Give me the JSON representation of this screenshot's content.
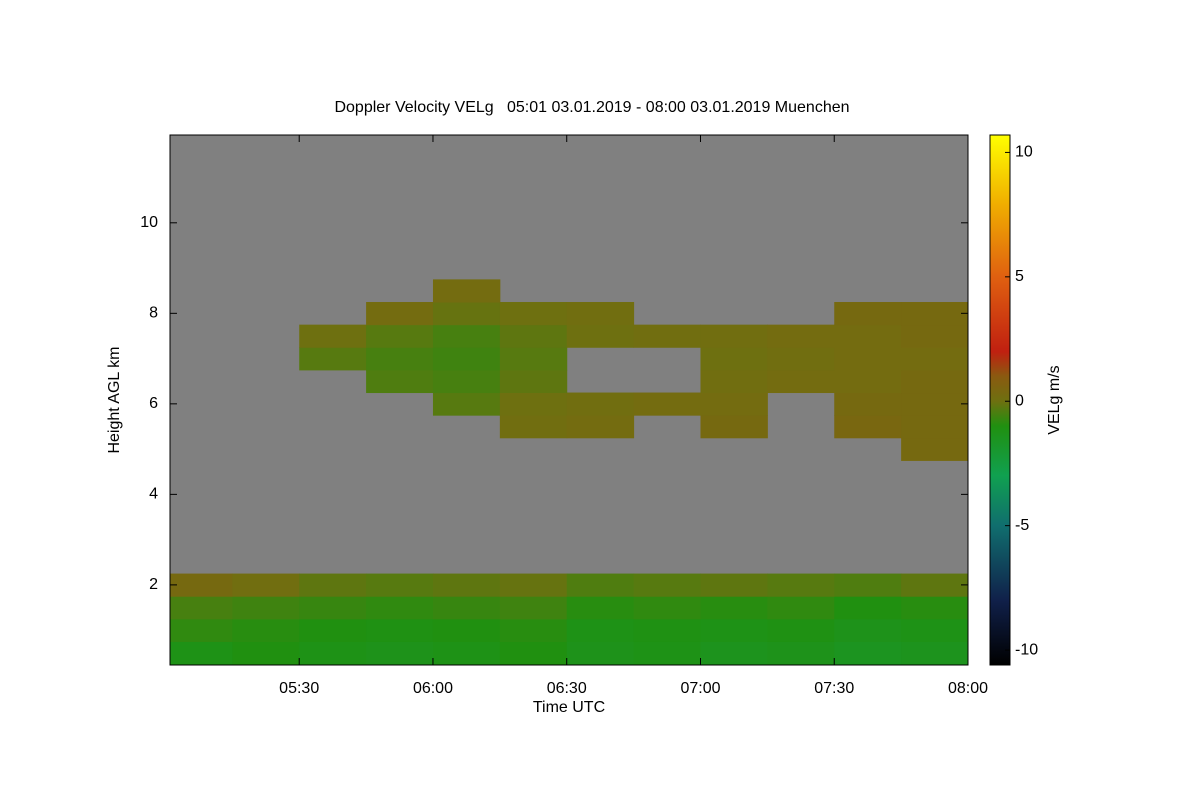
{
  "chart_data": {
    "type": "heatmap",
    "title": "Doppler Velocity VELg   05:01 03.01.2019 - 08:00 03.01.2019 Muenchen",
    "x_label": "Time UTC",
    "y_label": "Height AGL km",
    "colorbar_label": "VELg m/s",
    "xlim": [
      5.017,
      8.0
    ],
    "ylim": [
      0.23,
      11.94
    ],
    "xticks": [
      {
        "value": 5.5,
        "label": "05:30"
      },
      {
        "value": 6,
        "label": "06:00"
      },
      {
        "value": 6.5,
        "label": "06:30"
      },
      {
        "value": 7,
        "label": "07:00"
      },
      {
        "value": 7.5,
        "label": "07:30"
      },
      {
        "value": 8,
        "label": "08:00"
      }
    ],
    "yticks": [
      2,
      4,
      6,
      8,
      10
    ],
    "clim": [
      -10.6,
      10.7
    ],
    "cticks": [
      -10,
      -5,
      0,
      5,
      10
    ],
    "background_color": "#808080",
    "colormap": [
      [
        -10.6,
        "#000000"
      ],
      [
        -8,
        "#10204a"
      ],
      [
        -5,
        "#106e6e"
      ],
      [
        -3,
        "#10a050"
      ],
      [
        -1,
        "#209010"
      ],
      [
        0,
        "#6e7010"
      ],
      [
        1,
        "#8a5a10"
      ],
      [
        2,
        "#c02010"
      ],
      [
        5,
        "#e06010"
      ],
      [
        8,
        "#f0b000"
      ],
      [
        10.7,
        "#ffff00"
      ]
    ],
    "x": [
      5.125,
      5.375,
      5.625,
      5.875,
      6.125,
      6.375,
      6.625,
      6.875,
      7.125,
      7.375,
      7.625,
      7.875
    ],
    "y": [
      0.5,
      1.0,
      1.5,
      2.0,
      2.5,
      3.0,
      3.5,
      4.0,
      4.5,
      5.0,
      5.5,
      6.0,
      6.5,
      7.0,
      7.5,
      8.0,
      8.5
    ],
    "z": [
      [
        -1.2,
        -1.0,
        -1.2,
        -1.3,
        -1.2,
        -1.0,
        -1.3,
        -1.2,
        -1.4,
        -1.3,
        -1.5,
        -1.4
      ],
      [
        -0.8,
        -0.9,
        -1.0,
        -1.1,
        -1.0,
        -0.9,
        -1.2,
        -1.1,
        -1.2,
        -1.1,
        -1.3,
        -1.2
      ],
      [
        -0.5,
        -0.6,
        -0.7,
        -0.8,
        -0.7,
        -0.6,
        -0.9,
        -0.8,
        -0.9,
        -0.8,
        -1.0,
        -0.9
      ],
      [
        0.3,
        0.1,
        -0.2,
        -0.3,
        -0.2,
        -0.1,
        -0.4,
        -0.3,
        -0.2,
        -0.3,
        -0.4,
        -0.2
      ],
      [
        null,
        null,
        null,
        null,
        null,
        null,
        null,
        null,
        null,
        null,
        null,
        null
      ],
      [
        null,
        null,
        null,
        null,
        null,
        null,
        null,
        null,
        null,
        null,
        null,
        null
      ],
      [
        null,
        null,
        null,
        null,
        null,
        null,
        null,
        null,
        null,
        null,
        null,
        null
      ],
      [
        null,
        null,
        null,
        null,
        null,
        null,
        null,
        null,
        null,
        null,
        null,
        null
      ],
      [
        null,
        null,
        null,
        null,
        null,
        null,
        null,
        null,
        null,
        null,
        null,
        null
      ],
      [
        null,
        null,
        null,
        null,
        null,
        null,
        null,
        null,
        null,
        null,
        null,
        0.3
      ],
      [
        null,
        null,
        null,
        null,
        null,
        0.1,
        0.2,
        null,
        0.3,
        null,
        0.4,
        0.3
      ],
      [
        null,
        null,
        null,
        null,
        -0.3,
        0,
        0.1,
        0.2,
        0.2,
        null,
        0.3,
        0.3
      ],
      [
        null,
        null,
        null,
        -0.4,
        -0.5,
        -0.2,
        null,
        null,
        0.1,
        0.2,
        0.2,
        0.3
      ],
      [
        null,
        null,
        -0.3,
        -0.5,
        -0.6,
        -0.3,
        null,
        null,
        0,
        0.1,
        0.2,
        0.2
      ],
      [
        null,
        null,
        0,
        -0.3,
        -0.5,
        -0.2,
        0,
        0.1,
        0.1,
        0.2,
        0.2,
        0.3
      ],
      [
        null,
        null,
        null,
        0.2,
        -0.1,
        0,
        0.1,
        null,
        null,
        null,
        0.3,
        0.3
      ],
      [
        null,
        null,
        null,
        null,
        0.2,
        null,
        null,
        null,
        null,
        null,
        null,
        null
      ]
    ]
  }
}
